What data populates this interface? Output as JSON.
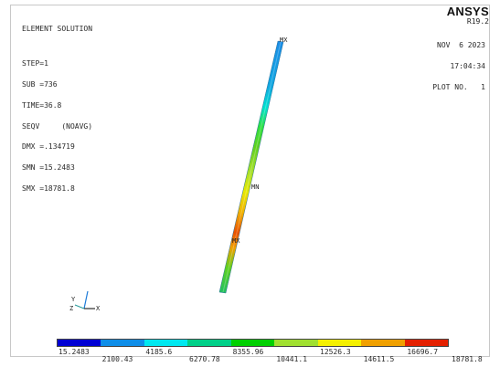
{
  "info": {
    "lines": [
      "ELEMENT SOLUTION",
      "",
      "STEP=1",
      "SUB =736",
      "TIME=36.8",
      "SEQV     (NOAVG)",
      "DMX =.134719",
      "SMN =15.2483",
      "SMX =18781.8"
    ]
  },
  "brand": {
    "name": "ANSYS",
    "version": "R19.2"
  },
  "meta": {
    "date": "NOV  6 2023",
    "time": "17:04:34",
    "plot": "PLOT NO.   1"
  },
  "model_labels": {
    "mx_top": "MX",
    "mn": "MN",
    "mx_mid": "MX"
  },
  "triad": {
    "y": "Y",
    "z": "Z",
    "x": "X"
  },
  "legend": {
    "colors": [
      "#0000d4",
      "#0f8ee8",
      "#00e8f0",
      "#00d088",
      "#00d000",
      "#a0e030",
      "#f4f000",
      "#f0a000",
      "#e42000"
    ],
    "labels": [
      "15.2483",
      "2100.43",
      "4185.6",
      "6270.78",
      "8355.96",
      "10441.1",
      "12526.3",
      "14611.5",
      "16696.7",
      "18781.8"
    ]
  }
}
